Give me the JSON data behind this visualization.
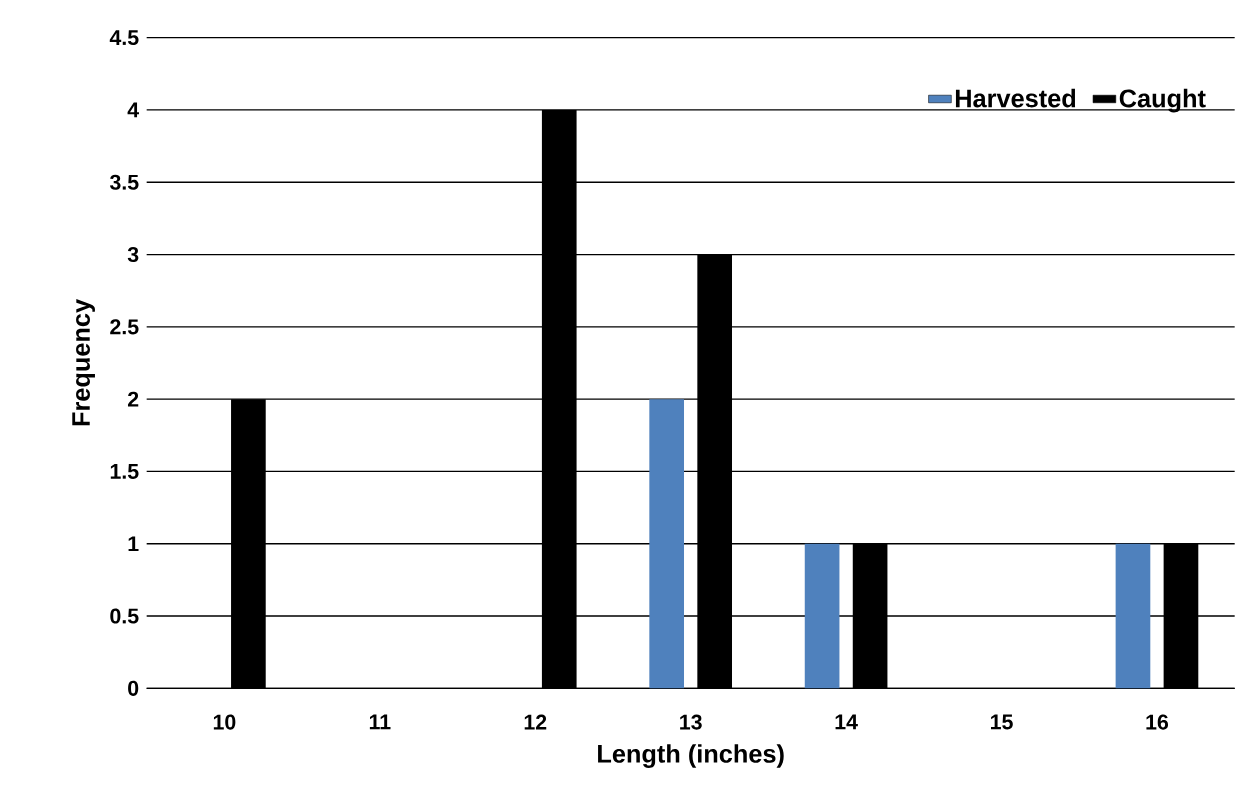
{
  "chart_data": {
    "type": "bar",
    "xlabel": "Length (inches)",
    "ylabel": "Frequency",
    "categories": [
      "10",
      "11",
      "12",
      "13",
      "14",
      "15",
      "16"
    ],
    "series": [
      {
        "name": "Harvested",
        "color": "#4f81bd",
        "values": [
          0,
          0,
          0,
          2,
          1,
          0,
          1
        ]
      },
      {
        "name": "Caught",
        "color": "#000000",
        "values": [
          2,
          0,
          4,
          3,
          1,
          0,
          1
        ]
      }
    ],
    "ylim": [
      0,
      4.5
    ],
    "yticks": [
      0,
      0.5,
      1,
      1.5,
      2,
      2.5,
      3,
      3.5,
      4,
      4.5
    ],
    "grid": "y",
    "legend": "top right"
  }
}
